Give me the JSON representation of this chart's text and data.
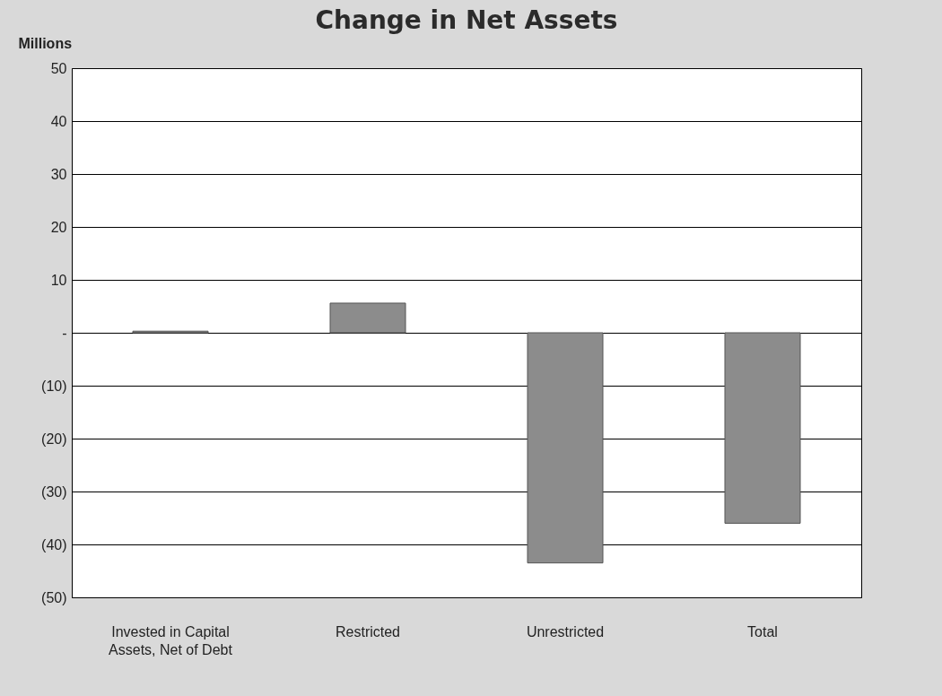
{
  "chart_data": {
    "type": "bar",
    "title": "Change in Net Assets",
    "ylabel": "Millions",
    "categories": [
      "Invested in Capital Assets, Net of Debt",
      "Restricted",
      "Unrestricted",
      "Total"
    ],
    "values": [
      0.3,
      5.6,
      -43.5,
      -36
    ],
    "color": "#8c8c8c",
    "ylim": [
      -50,
      50
    ],
    "yticks": [
      50,
      40,
      30,
      20,
      10,
      {
        "value": 0,
        "label": "-"
      },
      {
        "value": -10,
        "label": "(10)"
      },
      {
        "value": -20,
        "label": "(20)"
      },
      {
        "value": -30,
        "label": "(30)"
      },
      {
        "value": -40,
        "label": "(40)"
      },
      {
        "value": -50,
        "label": "(50)"
      }
    ],
    "grid": "y"
  }
}
